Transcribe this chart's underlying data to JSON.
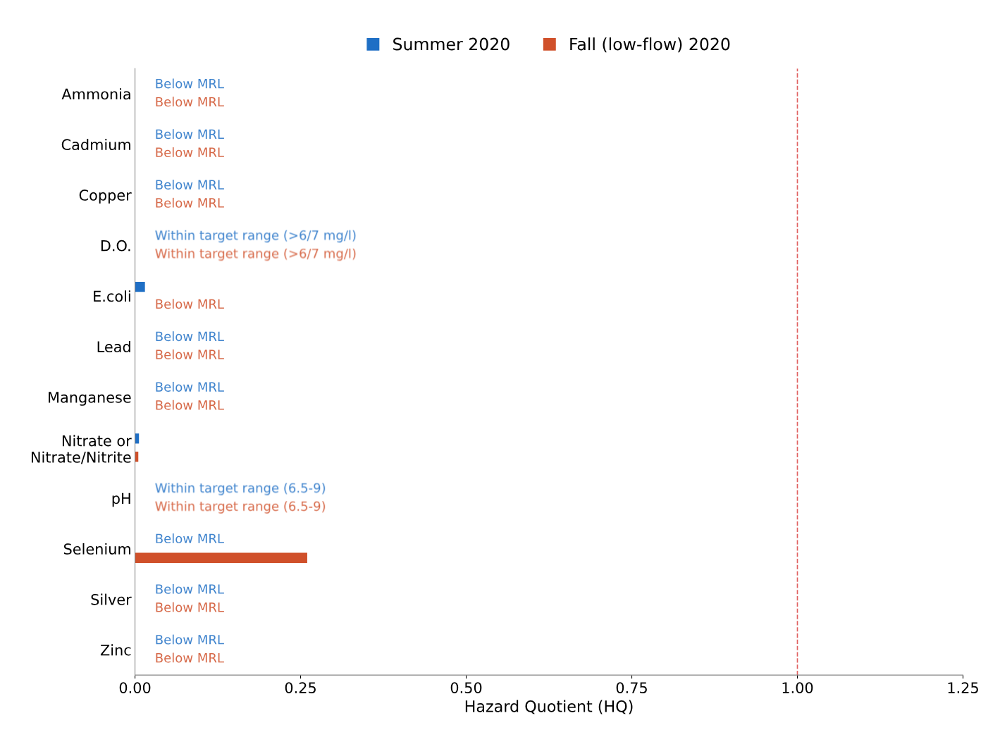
{
  "chart_data": {
    "type": "bar",
    "orientation": "horizontal",
    "xlabel": "Hazard Quotient (HQ)",
    "categories": [
      "Ammonia",
      "Cadmium",
      "Copper",
      "D.O.",
      "E.coli",
      "Lead",
      "Manganese",
      "Nitrate or\nNitrate/Nitrite",
      "pH",
      "Selenium",
      "Silver",
      "Zinc"
    ],
    "series": [
      {
        "name": "Summer 2020",
        "color": "#1f6fc5",
        "values": [
          null,
          null,
          null,
          null,
          0.015,
          null,
          null,
          0.006,
          null,
          null,
          null,
          null
        ],
        "value_labels": [
          "Below MRL",
          "Below MRL",
          "Below MRL",
          "Within target range (>6/7 mg/l)",
          null,
          "Below MRL",
          "Below MRL",
          null,
          "Within target range (6.5-9)",
          "Below MRL",
          "Below MRL",
          "Below MRL"
        ]
      },
      {
        "name": "Fall (low-flow) 2020",
        "color": "#d0502a",
        "values": [
          null,
          null,
          null,
          null,
          null,
          null,
          null,
          0.005,
          null,
          0.26,
          null,
          null
        ],
        "value_labels": [
          "Below MRL",
          "Below MRL",
          "Below MRL",
          "Within target range (>6/7 mg/l)",
          "Below MRL",
          "Below MRL",
          "Below MRL",
          null,
          "Within target range (6.5-9)",
          null,
          "Below MRL",
          "Below MRL"
        ]
      }
    ],
    "xlim": [
      0,
      1.25
    ],
    "xticks": [
      {
        "value": 0,
        "label": "0.00"
      },
      {
        "value": 0.25,
        "label": "0.25"
      },
      {
        "value": 0.5,
        "label": "0.50"
      },
      {
        "value": 0.75,
        "label": "0.75"
      },
      {
        "value": 1.0,
        "label": "1.00"
      },
      {
        "value": 1.25,
        "label": "1.25"
      }
    ],
    "ref_lines": [
      {
        "axis": "x",
        "value": 1.0,
        "label": null,
        "color": "#e06060",
        "line_style": "dashed"
      }
    ],
    "legend": "top",
    "grid": false
  }
}
